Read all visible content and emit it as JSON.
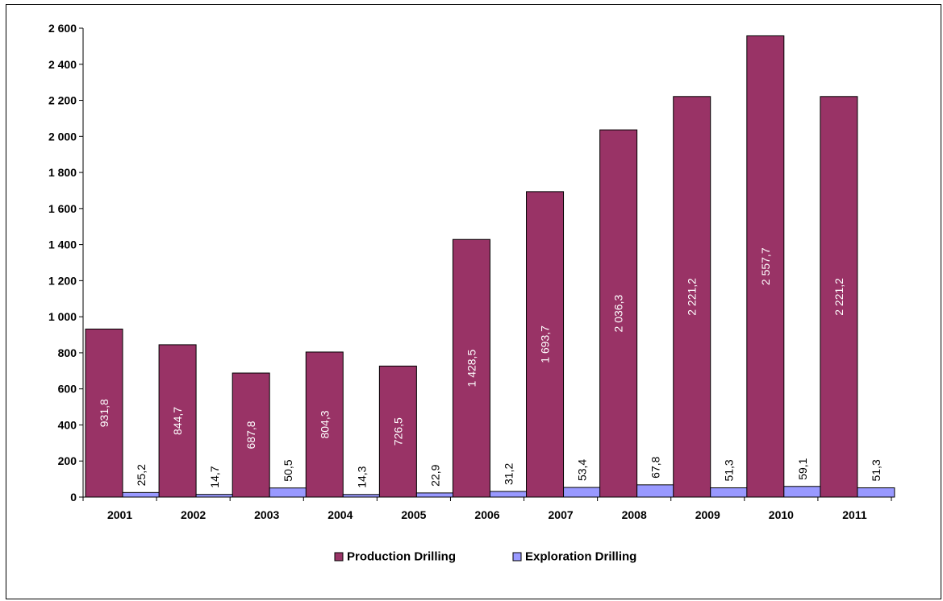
{
  "chart_data": {
    "type": "bar",
    "categories": [
      "2001",
      "2002",
      "2003",
      "2004",
      "2005",
      "2006",
      "2007",
      "2008",
      "2009",
      "2010",
      "2011"
    ],
    "series": [
      {
        "name": "Production Drilling",
        "values": [
          931.8,
          844.7,
          687.8,
          804.3,
          726.5,
          1428.5,
          1693.7,
          2036.3,
          2221.2,
          2557.7,
          2221.2
        ],
        "labels": [
          "931,8",
          "844,7",
          "687,8",
          "804,3",
          "726,5",
          "1 428,5",
          "1 693,7",
          "2 036,3",
          "2 221,2",
          "2 557,7",
          "2 221,2"
        ],
        "color": "#993366"
      },
      {
        "name": "Exploration Drilling",
        "values": [
          25.2,
          14.7,
          50.5,
          14.3,
          22.9,
          31.2,
          53.4,
          67.8,
          51.3,
          59.1,
          51.3
        ],
        "labels": [
          "25,2",
          "14,7",
          "50,5",
          "14,3",
          "22,9",
          "31,2",
          "53,4",
          "67,8",
          "51,3",
          "59,1",
          "51,3"
        ],
        "color": "#9999ff"
      }
    ],
    "ylim": [
      0,
      2600
    ],
    "yticks": [
      0,
      200,
      400,
      600,
      800,
      1000,
      1200,
      1400,
      1600,
      1800,
      2000,
      2200,
      2400,
      2600
    ],
    "ytick_labels": [
      "0",
      "200",
      "400",
      "600",
      "800",
      "1 000",
      "1 200",
      "1 400",
      "1 600",
      "1 800",
      "2 000",
      "2 200",
      "2 400",
      "2 600"
    ],
    "grid": false,
    "legend": "bottom-center",
    "title": "",
    "xlabel": "",
    "ylabel": ""
  }
}
